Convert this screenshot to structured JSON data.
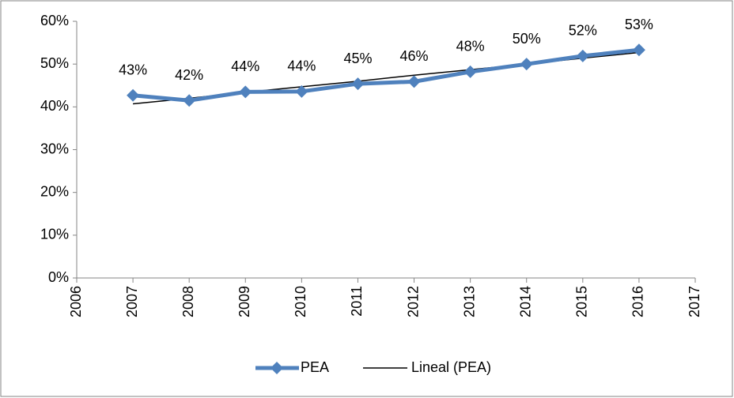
{
  "chart_data": {
    "type": "line",
    "x": [
      2007,
      2008,
      2009,
      2010,
      2011,
      2012,
      2013,
      2014,
      2015,
      2016
    ],
    "series": [
      {
        "name": "PEA",
        "color": "#4f81bd",
        "values": [
          42.7,
          41.5,
          43.5,
          43.6,
          45.4,
          45.9,
          48.2,
          50.0,
          51.9,
          53.3
        ],
        "value_labels": [
          "43%",
          "42%",
          "44%",
          "44%",
          "45%",
          "46%",
          "48%",
          "50%",
          "52%",
          "53%"
        ],
        "marker": "diamond"
      },
      {
        "name": "Lineal (PEA)",
        "color": "#000000",
        "values": [
          40.7,
          42.0,
          43.4,
          44.7,
          46.0,
          47.4,
          48.7,
          50.0,
          51.4,
          52.7
        ]
      }
    ],
    "xlim": [
      2006,
      2017
    ],
    "xticks": [
      2006,
      2007,
      2008,
      2009,
      2010,
      2011,
      2012,
      2013,
      2014,
      2015,
      2016,
      2017
    ],
    "ylim": [
      0,
      60
    ],
    "yticks": [
      {
        "value": 0,
        "label": "0%"
      },
      {
        "value": 10,
        "label": "10%"
      },
      {
        "value": 20,
        "label": "20%"
      },
      {
        "value": 30,
        "label": "30%"
      },
      {
        "value": 40,
        "label": "40%"
      },
      {
        "value": 50,
        "label": "50%"
      },
      {
        "value": 60,
        "label": "60%"
      }
    ],
    "grid": false,
    "legend": "bottom"
  }
}
